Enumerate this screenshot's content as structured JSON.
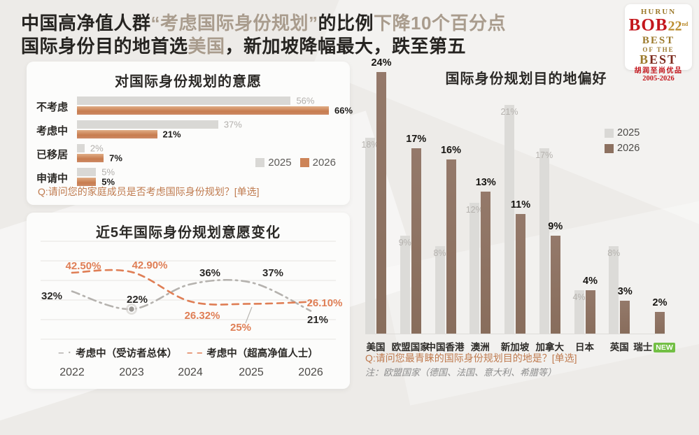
{
  "header": {
    "title_line1": [
      {
        "text": "中国高净值人群"
      },
      {
        "text": "“考虑国际身份规划”"
      },
      {
        "text": "的比例"
      },
      {
        "text": "下降10个百分点"
      }
    ],
    "title_line2": [
      {
        "text": "国际身份目的地首选"
      },
      {
        "text": "美国"
      },
      {
        "text": "，新加坡降幅最大，跌至第五"
      }
    ],
    "logo": {
      "brand": "HURUN",
      "name": "BOB",
      "edition": "22",
      "edition_sup": "nd",
      "tagline1": "BEST",
      "tagline2": "OF THE",
      "tagline3_b": "B",
      "tagline3_est": "EST",
      "cn": "胡润至尚优品",
      "years": "2005-2026"
    }
  },
  "colors": {
    "background": "#edebe8",
    "accent_tan": "#a99c8d",
    "dark_text": "#262421",
    "gray_bar_2025": "#d9d8d5",
    "copper_bar_2026": "#c77c4f",
    "brown_bar_2026": "#8c7160",
    "orange_line": "#df7e55",
    "gray_line": "#b3b0ac",
    "question_orange": "#bf7a4e",
    "note_gray": "#8b8b8b",
    "new_green": "#72bf44"
  },
  "chart_data": [
    {
      "id": "willingness",
      "type": "bar",
      "orientation": "horizontal",
      "title": "对国际身份规划的意愿",
      "categories": [
        "不考虑",
        "考虑中",
        "已移居",
        "申请中"
      ],
      "series": [
        {
          "name": "2025",
          "values": [
            56,
            37,
            2,
            5
          ]
        },
        {
          "name": "2026",
          "values": [
            66,
            21,
            7,
            5
          ]
        }
      ],
      "xlim": [
        0,
        66
      ],
      "legend": [
        "2025",
        "2026"
      ],
      "legend_position": "right-middle",
      "question": "Q:请问您的家庭成员是否考虑国际身份规划？[单选]"
    },
    {
      "id": "trend",
      "type": "line",
      "title": "近5年国际身份规划意愿变化",
      "x": [
        "2022",
        "2023",
        "2024",
        "2025",
        "2026"
      ],
      "series": [
        {
          "name": "考虑中（受访者总体）",
          "style": "dash-dot-gray",
          "values": [
            32,
            22,
            36,
            37,
            21
          ],
          "labels": [
            "32%",
            "22%",
            "36%",
            "37%",
            "21%"
          ]
        },
        {
          "name": "考虑中（超高净值人士）",
          "style": "dashed-orange",
          "values": [
            42.5,
            42.9,
            26.32,
            25,
            26.1
          ],
          "labels": [
            "42.50%",
            "42.90%",
            "26.32%",
            "25%",
            "26.10%"
          ]
        }
      ],
      "grid": true,
      "highlight_marker": {
        "series": 0,
        "index": 1
      },
      "legend_position": "bottom-center"
    },
    {
      "id": "destinations",
      "type": "bar",
      "orientation": "vertical",
      "title": "国际身份规划目的地偏好",
      "categories": [
        "美国",
        "欧盟国家",
        "中国香港",
        "澳洲",
        "新加坡",
        "加拿大",
        "日本",
        "英国",
        "瑞士"
      ],
      "series": [
        {
          "name": "2025",
          "values": [
            18,
            9,
            8,
            12,
            21,
            17,
            4,
            8,
            null
          ]
        },
        {
          "name": "2026",
          "values": [
            24,
            17,
            16,
            13,
            11,
            9,
            4,
            3,
            2
          ]
        }
      ],
      "ylim": [
        0,
        24
      ],
      "legend": [
        "2025",
        "2026"
      ],
      "legend_position": "right-middle",
      "new_badge": {
        "category": "瑞士",
        "label": "NEW"
      },
      "question": "Q:请问您最青睐的国际身份规划目的地是？[单选]",
      "note": "注：欧盟国家（德国、法国、意大利、希腊等）"
    }
  ]
}
